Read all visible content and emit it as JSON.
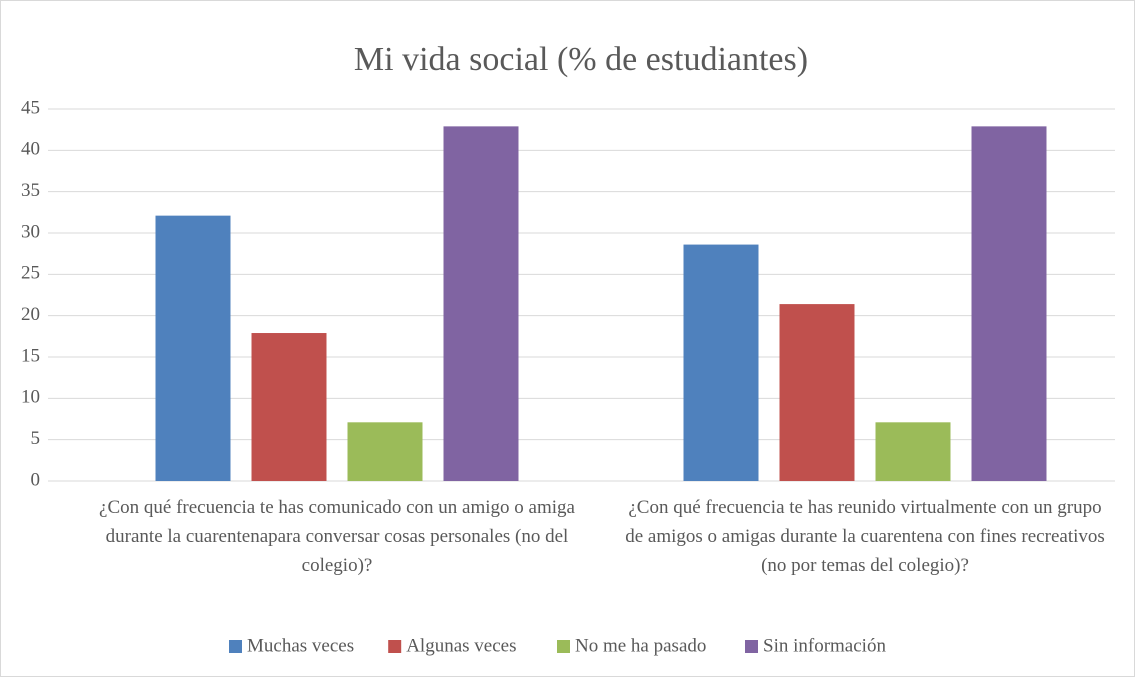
{
  "chart_data": {
    "type": "bar",
    "title": "Mi vida social (% de estudiantes)",
    "categories": [
      "¿Con qué frecuencia te has comunicado con un amigo o amiga durante la cuarentenapara conversar cosas personales (no del colegio)?",
      "¿Con qué frecuencia te has reunido virtualmente con un grupo de amigos o amigas durante la cuarentena con fines recreativos (no por temas del colegio)?"
    ],
    "series": [
      {
        "name": "Muchas veces",
        "color": "#4f81bd",
        "values": [
          32.1,
          28.6
        ]
      },
      {
        "name": "Algunas veces",
        "color": "#c0504d",
        "values": [
          17.9,
          21.4
        ]
      },
      {
        "name": "No me ha pasado",
        "color": "#9bbb59",
        "values": [
          7.1,
          7.1
        ]
      },
      {
        "name": "Sin información",
        "color": "#8064a2",
        "values": [
          42.9,
          42.9
        ]
      }
    ],
    "ylim": [
      0,
      45
    ],
    "yticks": [
      0,
      5,
      10,
      15,
      20,
      25,
      30,
      35,
      40,
      45
    ],
    "grid": true,
    "legend": "bottom"
  }
}
